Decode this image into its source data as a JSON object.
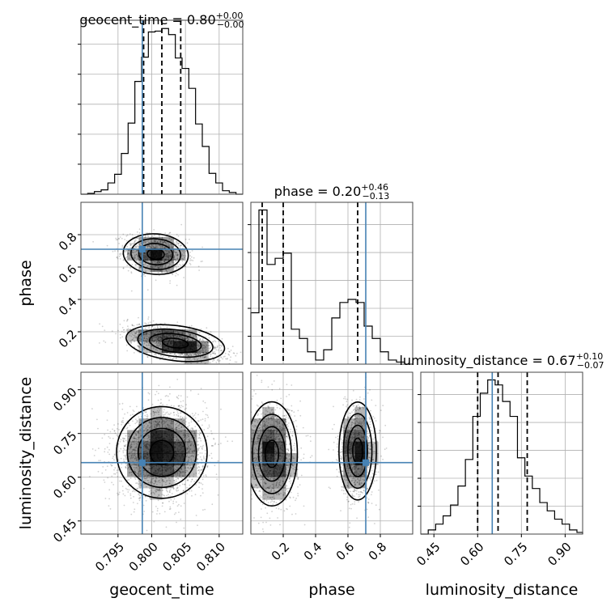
{
  "chart_data": [
    {
      "type": "histogram",
      "panel": "geocent_time",
      "title": {
        "main": "geocent_time = 0.80",
        "sup": "+0.00",
        "sub": "−0.00"
      },
      "xlim": [
        0.7895,
        0.8135
      ],
      "bins": [
        0.7895,
        0.7905,
        0.7915,
        0.7925,
        0.7935,
        0.7945,
        0.7955,
        0.7965,
        0.7975,
        0.7985,
        0.7995,
        0.8005,
        0.8015,
        0.8025,
        0.8035,
        0.8045,
        0.8055,
        0.8065,
        0.8075,
        0.8085,
        0.8095,
        0.8105,
        0.8115,
        0.8125,
        0.8135
      ],
      "counts": [
        0,
        1,
        3,
        5,
        13,
        23,
        47,
        82,
        130,
        158,
        187,
        188,
        191,
        184,
        157,
        145,
        122,
        81,
        55,
        24,
        13,
        4,
        2,
        0
      ],
      "quantiles": [
        0.7988,
        0.8015,
        0.8043
      ],
      "truth": 0.7986
    },
    {
      "type": "histogram",
      "panel": "phase",
      "title": {
        "main": "phase = 0.20",
        "sup": "+0.46",
        "sub": "−0.13"
      },
      "xlim": [
        0.0,
        1.0
      ],
      "bins": [
        0.0,
        0.05,
        0.1,
        0.15,
        0.2,
        0.25,
        0.3,
        0.35,
        0.4,
        0.45,
        0.5,
        0.55,
        0.6,
        0.65,
        0.7,
        0.75,
        0.8,
        0.85,
        0.9,
        0.95,
        1.0
      ],
      "counts": [
        50,
        150,
        97,
        103,
        108,
        34,
        25,
        12,
        4,
        14,
        45,
        60,
        63,
        60,
        37,
        25,
        12,
        4,
        2,
        0
      ],
      "quantiles": [
        0.07,
        0.2,
        0.66
      ],
      "truth": 0.71
    },
    {
      "type": "histogram",
      "panel": "luminosity_distance",
      "title": {
        "main": "luminosity_distance = 0.67",
        "sup": "+0.10",
        "sub": "−0.07"
      },
      "xlim": [
        0.405,
        0.96
      ],
      "bins": [
        0.405,
        0.4305,
        0.456,
        0.4815,
        0.507,
        0.5325,
        0.558,
        0.5835,
        0.609,
        0.6345,
        0.66,
        0.6855,
        0.711,
        0.7365,
        0.762,
        0.7875,
        0.813,
        0.8385,
        0.864,
        0.8895,
        0.915,
        0.9405,
        0.96
      ],
      "counts": [
        0,
        5,
        12,
        22,
        35,
        58,
        90,
        142,
        170,
        186,
        180,
        160,
        142,
        92,
        70,
        55,
        38,
        28,
        18,
        12,
        5,
        2
      ],
      "quantiles": [
        0.6,
        0.67,
        0.77
      ],
      "truth": 0.65
    },
    {
      "type": "scatter_density",
      "panel": "phase vs geocent_time",
      "x": "geocent_time",
      "y": "phase",
      "xlim": [
        0.7895,
        0.8135
      ],
      "ylim": [
        0.0,
        1.0
      ],
      "modes": [
        {
          "x": 0.8006,
          "y": 0.68,
          "sx": 0.0023,
          "sy": 0.06,
          "rho": -0.2,
          "w": 0.42
        },
        {
          "x": 0.8035,
          "y": 0.13,
          "sx": 0.0035,
          "sy": 0.055,
          "rho": -0.55,
          "w": 0.58
        }
      ],
      "truth": [
        0.7986,
        0.71
      ]
    },
    {
      "type": "scatter_density",
      "panel": "luminosity_distance vs geocent_time",
      "x": "geocent_time",
      "y": "luminosity_distance",
      "xlim": [
        0.7895,
        0.8135
      ],
      "ylim": [
        0.405,
        0.96
      ],
      "modes": [
        {
          "x": 0.8015,
          "y": 0.685,
          "sx": 0.0032,
          "sy": 0.075,
          "rho": 0.05,
          "w": 1.0
        }
      ],
      "truth": [
        0.7986,
        0.65
      ]
    },
    {
      "type": "scatter_density",
      "panel": "luminosity_distance vs phase",
      "x": "phase",
      "y": "luminosity_distance",
      "xlim": [
        0.0,
        1.0
      ],
      "ylim": [
        0.405,
        0.96
      ],
      "modes": [
        {
          "x": 0.13,
          "y": 0.68,
          "sx": 0.075,
          "sy": 0.085,
          "rho": 0.0,
          "w": 0.58
        },
        {
          "x": 0.66,
          "y": 0.69,
          "sx": 0.055,
          "sy": 0.08,
          "rho": 0.0,
          "w": 0.42
        }
      ],
      "truth": [
        0.71,
        0.65
      ]
    }
  ],
  "axes": {
    "geocent_time": {
      "label": "geocent_time",
      "ticks": [
        0.795,
        0.8,
        0.805,
        0.81
      ],
      "ticklabels": [
        "0.795",
        "0.800",
        "0.805",
        "0.810"
      ]
    },
    "phase": {
      "label": "phase",
      "ticks": [
        0.2,
        0.4,
        0.6,
        0.8
      ],
      "ticklabels": [
        "0.2",
        "0.4",
        "0.6",
        "0.8"
      ]
    },
    "luminosity_distance": {
      "label": "luminosity_distance",
      "ticks": [
        0.45,
        0.6,
        0.75,
        0.9
      ],
      "ticklabels": [
        "0.45",
        "0.60",
        "0.75",
        "0.90"
      ]
    }
  },
  "colors": {
    "truth": "#4682b4",
    "hist": "#000000",
    "grid": "#b0b0b0",
    "density": "#000000"
  }
}
